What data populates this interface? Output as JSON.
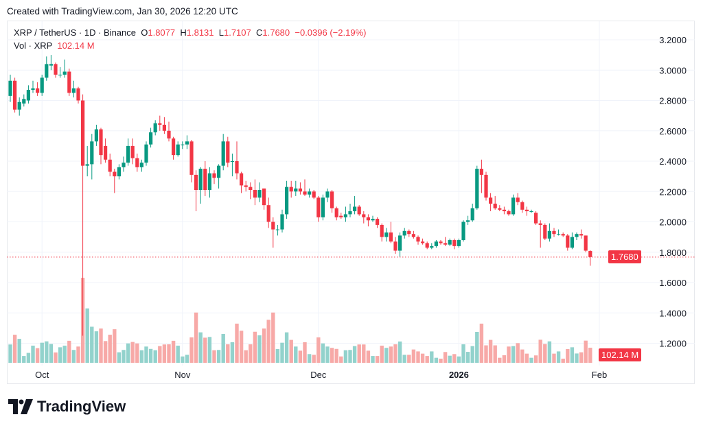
{
  "header": {
    "created": "Created with TradingView.com, Jan 30, 2026 12:20 UTC"
  },
  "legend": {
    "symbol": "XRP / TetherUS · 1D · Binance",
    "o_label": "O",
    "o": "1.8077",
    "h_label": "H",
    "h": "1.8131",
    "l_label": "L",
    "l": "1.7107",
    "c_label": "C",
    "c": "1.7680",
    "change": "−0.0396 (−2.19%)",
    "vol_label": "Vol · XRP",
    "vol": "102.14 M"
  },
  "badges": {
    "last_price": "1.7680",
    "last_volume": "102.14 M"
  },
  "logo": {
    "text": "TradingView"
  },
  "colors": {
    "up": "#089981",
    "down": "#f23645",
    "vol_up": "#92d2cc",
    "vol_down": "#f7a9a7",
    "grid": "#f0f3fa"
  },
  "chart_data": {
    "type": "candlestick",
    "title": "XRP / TetherUS · 1D · Binance",
    "y_ticks": [
      "3.2000",
      "3.0000",
      "2.8000",
      "2.6000",
      "2.4000",
      "2.2000",
      "2.0000",
      "1.8000",
      "1.6000",
      "1.4000",
      "1.2000"
    ],
    "ylim": [
      1.2,
      3.2
    ],
    "x_ticks": [
      {
        "label": "Oct",
        "date": "2025-10-01"
      },
      {
        "label": "Nov",
        "date": "2025-11-01"
      },
      {
        "label": "Dec",
        "date": "2025-12-01"
      },
      {
        "label": "2026",
        "date": "2026-01-01"
      },
      {
        "label": "Feb",
        "date": "2026-02-01"
      }
    ],
    "grid": true,
    "last_price": 1.768,
    "columns": [
      "date",
      "open",
      "high",
      "low",
      "close",
      "volume_M"
    ],
    "candles": [
      [
        "2025-09-24",
        2.83,
        2.97,
        2.79,
        2.93,
        124
      ],
      [
        "2025-09-25",
        2.93,
        2.95,
        2.72,
        2.74,
        190
      ],
      [
        "2025-09-26",
        2.74,
        2.82,
        2.7,
        2.79,
        162
      ],
      [
        "2025-09-27",
        2.78,
        2.84,
        2.76,
        2.81,
        46
      ],
      [
        "2025-09-28",
        2.8,
        2.9,
        2.78,
        2.87,
        67
      ],
      [
        "2025-09-29",
        2.87,
        2.93,
        2.85,
        2.88,
        116
      ],
      [
        "2025-09-30",
        2.88,
        2.92,
        2.83,
        2.85,
        99
      ],
      [
        "2025-10-01",
        2.85,
        2.97,
        2.83,
        2.95,
        136
      ],
      [
        "2025-10-02",
        2.95,
        3.09,
        2.93,
        3.04,
        145
      ],
      [
        "2025-10-03",
        3.03,
        3.1,
        3.0,
        3.04,
        127
      ],
      [
        "2025-10-04",
        3.04,
        3.05,
        2.95,
        2.97,
        70
      ],
      [
        "2025-10-05",
        2.97,
        3.02,
        2.95,
        2.97,
        105
      ],
      [
        "2025-10-06",
        2.97,
        3.07,
        2.95,
        2.99,
        116
      ],
      [
        "2025-10-07",
        2.99,
        3.01,
        2.83,
        2.85,
        149
      ],
      [
        "2025-10-08",
        2.85,
        2.93,
        2.82,
        2.88,
        87
      ],
      [
        "2025-10-09",
        2.88,
        2.89,
        2.78,
        2.8,
        110
      ],
      [
        "2025-10-10",
        2.8,
        2.84,
        1.25,
        2.37,
        575
      ],
      [
        "2025-10-11",
        2.37,
        2.5,
        2.3,
        2.38,
        368
      ],
      [
        "2025-10-12",
        2.38,
        2.58,
        2.28,
        2.53,
        244
      ],
      [
        "2025-10-13",
        2.53,
        2.64,
        2.5,
        2.61,
        213
      ],
      [
        "2025-10-14",
        2.61,
        2.62,
        2.38,
        2.44,
        232
      ],
      [
        "2025-10-15",
        2.5,
        2.55,
        2.39,
        2.41,
        147
      ],
      [
        "2025-10-16",
        2.41,
        2.45,
        2.3,
        2.33,
        190
      ],
      [
        "2025-10-17",
        2.33,
        2.35,
        2.19,
        2.3,
        227
      ],
      [
        "2025-10-18",
        2.3,
        2.38,
        2.28,
        2.36,
        71
      ],
      [
        "2025-10-19",
        2.36,
        2.43,
        2.33,
        2.39,
        87
      ],
      [
        "2025-10-20",
        2.39,
        2.55,
        2.37,
        2.5,
        131
      ],
      [
        "2025-10-21",
        2.5,
        2.55,
        2.38,
        2.42,
        141
      ],
      [
        "2025-10-22",
        2.42,
        2.45,
        2.33,
        2.36,
        131
      ],
      [
        "2025-10-23",
        2.36,
        2.41,
        2.33,
        2.39,
        85
      ],
      [
        "2025-10-24",
        2.39,
        2.53,
        2.37,
        2.51,
        110
      ],
      [
        "2025-10-25",
        2.51,
        2.62,
        2.49,
        2.59,
        94
      ],
      [
        "2025-10-26",
        2.59,
        2.67,
        2.57,
        2.65,
        85
      ],
      [
        "2025-10-27",
        2.65,
        2.7,
        2.6,
        2.64,
        113
      ],
      [
        "2025-10-28",
        2.64,
        2.69,
        2.58,
        2.6,
        124
      ],
      [
        "2025-10-29",
        2.6,
        2.66,
        2.53,
        2.55,
        125
      ],
      [
        "2025-10-30",
        2.55,
        2.56,
        2.41,
        2.44,
        149
      ],
      [
        "2025-10-31",
        2.44,
        2.53,
        2.43,
        2.51,
        116
      ],
      [
        "2025-11-01",
        2.51,
        2.53,
        2.48,
        2.51,
        43
      ],
      [
        "2025-11-02",
        2.51,
        2.57,
        2.48,
        2.53,
        54
      ],
      [
        "2025-11-03",
        2.53,
        2.54,
        2.26,
        2.31,
        172
      ],
      [
        "2025-11-04",
        2.31,
        2.34,
        2.07,
        2.21,
        340
      ],
      [
        "2025-11-05",
        2.21,
        2.36,
        2.12,
        2.35,
        206
      ],
      [
        "2025-11-06",
        2.35,
        2.4,
        2.17,
        2.21,
        170
      ],
      [
        "2025-11-07",
        2.21,
        2.36,
        2.16,
        2.32,
        175
      ],
      [
        "2025-11-08",
        2.32,
        2.34,
        2.25,
        2.29,
        85
      ],
      [
        "2025-11-09",
        2.29,
        2.38,
        2.22,
        2.37,
        87
      ],
      [
        "2025-11-10",
        2.37,
        2.58,
        2.34,
        2.53,
        195
      ],
      [
        "2025-11-11",
        2.53,
        2.56,
        2.36,
        2.39,
        125
      ],
      [
        "2025-11-12",
        2.4,
        2.45,
        2.3,
        2.4,
        139
      ],
      [
        "2025-11-13",
        2.4,
        2.53,
        2.28,
        2.32,
        265
      ],
      [
        "2025-11-14",
        2.32,
        2.33,
        2.19,
        2.24,
        217
      ],
      [
        "2025-11-15",
        2.24,
        2.27,
        2.2,
        2.23,
        85
      ],
      [
        "2025-11-16",
        2.23,
        2.26,
        2.15,
        2.21,
        125
      ],
      [
        "2025-11-17",
        2.21,
        2.28,
        2.11,
        2.16,
        210
      ],
      [
        "2025-11-18",
        2.16,
        2.26,
        2.13,
        2.21,
        186
      ],
      [
        "2025-11-19",
        2.22,
        2.22,
        2.08,
        2.11,
        232
      ],
      [
        "2025-11-20",
        2.11,
        2.16,
        1.96,
        2.0,
        291
      ],
      [
        "2025-11-21",
        2.0,
        2.03,
        1.83,
        1.95,
        340
      ],
      [
        "2025-11-22",
        1.95,
        1.98,
        1.91,
        1.95,
        93
      ],
      [
        "2025-11-23",
        1.95,
        2.08,
        1.93,
        2.05,
        136
      ],
      [
        "2025-11-24",
        2.05,
        2.27,
        2.02,
        2.23,
        206
      ],
      [
        "2025-11-25",
        2.23,
        2.27,
        2.16,
        2.2,
        155
      ],
      [
        "2025-11-26",
        2.2,
        2.27,
        2.17,
        2.22,
        110
      ],
      [
        "2025-11-27",
        2.22,
        2.26,
        2.18,
        2.2,
        82
      ],
      [
        "2025-11-28",
        2.2,
        2.28,
        2.17,
        2.18,
        139
      ],
      [
        "2025-11-29",
        2.18,
        2.22,
        2.16,
        2.2,
        59
      ],
      [
        "2025-11-30",
        2.2,
        2.21,
        2.15,
        2.16,
        54
      ],
      [
        "2025-12-01",
        2.16,
        2.17,
        2.0,
        2.03,
        172
      ],
      [
        "2025-12-02",
        2.03,
        2.18,
        2.01,
        2.16,
        131
      ],
      [
        "2025-12-03",
        2.16,
        2.22,
        2.13,
        2.2,
        110
      ],
      [
        "2025-12-04",
        2.2,
        2.21,
        2.06,
        2.09,
        101
      ],
      [
        "2025-12-05",
        2.09,
        2.1,
        2.01,
        2.03,
        94
      ],
      [
        "2025-12-06",
        2.04,
        2.06,
        2.02,
        2.03,
        43
      ],
      [
        "2025-12-07",
        2.03,
        2.1,
        2.0,
        2.05,
        85
      ],
      [
        "2025-12-08",
        2.05,
        2.12,
        2.03,
        2.07,
        87
      ],
      [
        "2025-12-09",
        2.07,
        2.17,
        2.05,
        2.1,
        113
      ],
      [
        "2025-12-10",
        2.1,
        2.11,
        2.04,
        2.05,
        124
      ],
      [
        "2025-12-11",
        2.05,
        2.07,
        1.99,
        2.03,
        124
      ],
      [
        "2025-12-12",
        2.03,
        2.05,
        1.97,
        2.01,
        82
      ],
      [
        "2025-12-13",
        2.01,
        2.04,
        2.0,
        2.02,
        46
      ],
      [
        "2025-12-14",
        2.02,
        2.03,
        1.96,
        1.98,
        46
      ],
      [
        "2025-12-15",
        1.98,
        1.99,
        1.87,
        1.9,
        116
      ],
      [
        "2025-12-16",
        1.9,
        1.96,
        1.87,
        1.93,
        101
      ],
      [
        "2025-12-17",
        1.93,
        2.0,
        1.86,
        1.87,
        110
      ],
      [
        "2025-12-18",
        1.87,
        1.9,
        1.79,
        1.81,
        125
      ],
      [
        "2025-12-19",
        1.81,
        1.93,
        1.77,
        1.91,
        144
      ],
      [
        "2025-12-20",
        1.91,
        1.96,
        1.89,
        1.94,
        54
      ],
      [
        "2025-12-21",
        1.94,
        1.95,
        1.9,
        1.92,
        54
      ],
      [
        "2025-12-22",
        1.92,
        1.94,
        1.89,
        1.9,
        90
      ],
      [
        "2025-12-23",
        1.9,
        1.91,
        1.85,
        1.87,
        77
      ],
      [
        "2025-12-24",
        1.87,
        1.89,
        1.85,
        1.86,
        62
      ],
      [
        "2025-12-25",
        1.86,
        1.87,
        1.82,
        1.83,
        46
      ],
      [
        "2025-12-26",
        1.83,
        1.86,
        1.82,
        1.84,
        77
      ],
      [
        "2025-12-27",
        1.84,
        1.88,
        1.83,
        1.87,
        34
      ],
      [
        "2025-12-28",
        1.87,
        1.88,
        1.85,
        1.86,
        28
      ],
      [
        "2025-12-29",
        1.86,
        1.9,
        1.84,
        1.85,
        73
      ],
      [
        "2025-12-30",
        1.85,
        1.89,
        1.84,
        1.88,
        48
      ],
      [
        "2025-12-31",
        1.88,
        1.89,
        1.82,
        1.84,
        59
      ],
      [
        "2026-01-01",
        1.84,
        1.89,
        1.83,
        1.88,
        43
      ],
      [
        "2026-01-02",
        1.88,
        2.01,
        1.87,
        2.0,
        125
      ],
      [
        "2026-01-03",
        2.0,
        2.04,
        1.98,
        2.01,
        74
      ],
      [
        "2026-01-04",
        2.01,
        2.12,
        2.0,
        2.09,
        113
      ],
      [
        "2026-01-05",
        2.09,
        2.37,
        2.08,
        2.35,
        209
      ],
      [
        "2026-01-06",
        2.35,
        2.41,
        2.19,
        2.31,
        265
      ],
      [
        "2026-01-07",
        2.31,
        2.33,
        2.14,
        2.16,
        118
      ],
      [
        "2026-01-08",
        2.16,
        2.19,
        2.07,
        2.12,
        155
      ],
      [
        "2026-01-09",
        2.12,
        2.17,
        2.08,
        2.09,
        118
      ],
      [
        "2026-01-10",
        2.09,
        2.11,
        2.07,
        2.08,
        34
      ],
      [
        "2026-01-11",
        2.08,
        2.1,
        2.05,
        2.07,
        51
      ],
      [
        "2026-01-12",
        2.07,
        2.08,
        2.04,
        2.05,
        110
      ],
      [
        "2026-01-13",
        2.05,
        2.18,
        2.04,
        2.16,
        113
      ],
      [
        "2026-01-14",
        2.16,
        2.19,
        2.11,
        2.13,
        133
      ],
      [
        "2026-01-15",
        2.13,
        2.14,
        2.06,
        2.08,
        90
      ],
      [
        "2026-01-16",
        2.08,
        2.1,
        2.04,
        2.07,
        62
      ],
      [
        "2026-01-17",
        2.07,
        2.08,
        2.06,
        2.07,
        34
      ],
      [
        "2026-01-18",
        2.06,
        2.07,
        1.98,
        1.99,
        50
      ],
      [
        "2026-01-19",
        1.99,
        2.01,
        1.83,
        1.98,
        156
      ],
      [
        "2026-01-20",
        1.98,
        1.99,
        1.88,
        1.89,
        127
      ],
      [
        "2026-01-21",
        1.89,
        1.99,
        1.87,
        1.94,
        145
      ],
      [
        "2026-01-22",
        1.94,
        1.96,
        1.9,
        1.92,
        62
      ],
      [
        "2026-01-23",
        1.92,
        1.95,
        1.91,
        1.92,
        77
      ],
      [
        "2026-01-24",
        1.92,
        1.93,
        1.9,
        1.91,
        28
      ],
      [
        "2026-01-25",
        1.91,
        1.92,
        1.81,
        1.83,
        93
      ],
      [
        "2026-01-26",
        1.83,
        1.93,
        1.82,
        1.9,
        105
      ],
      [
        "2026-01-27",
        1.9,
        1.93,
        1.88,
        1.92,
        63
      ],
      [
        "2026-01-28",
        1.92,
        1.95,
        1.89,
        1.91,
        71
      ],
      [
        "2026-01-29",
        1.91,
        1.91,
        1.8,
        1.81,
        150
      ],
      [
        "2026-01-30",
        1.8077,
        1.8131,
        1.7107,
        1.768,
        102.14
      ]
    ]
  }
}
